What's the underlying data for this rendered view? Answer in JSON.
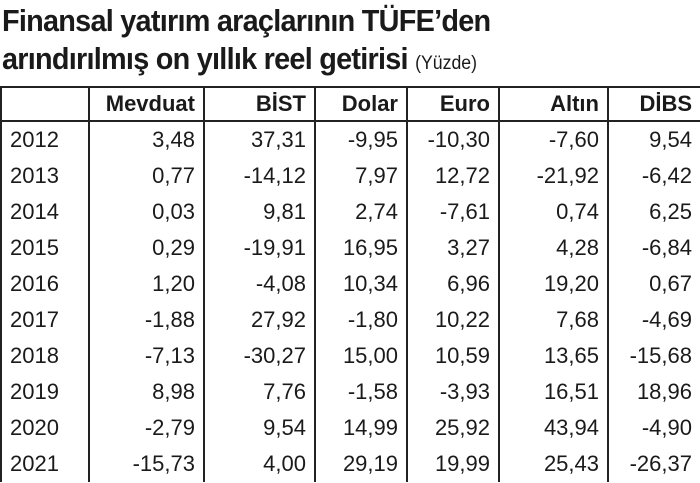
{
  "header": {
    "title": [
      "Finansal yatırım araçlarının TÜFE’den",
      "arındırılmış on yıllık reel getirisi"
    ],
    "unit": "(Yüzde)"
  },
  "table": {
    "columns": [
      "Mevduat",
      "BİST",
      "Dolar",
      "Euro",
      "Altın",
      "DİBS"
    ],
    "rows": [
      [
        "2012",
        "3,48",
        "37,31",
        "-9,95",
        "-10,30",
        "-7,60",
        "9,54"
      ],
      [
        "2013",
        "0,77",
        "-14,12",
        "7,97",
        "12,72",
        "-21,92",
        "-6,42"
      ],
      [
        "2014",
        "0,03",
        "9,81",
        "2,74",
        "-7,61",
        "0,74",
        "6,25"
      ],
      [
        "2015",
        "0,29",
        "-19,91",
        "16,95",
        "3,27",
        "4,28",
        "-6,84"
      ],
      [
        "2016",
        "1,20",
        "-4,08",
        "10,34",
        "6,96",
        "19,20",
        "0,67"
      ],
      [
        "2017",
        "-1,88",
        "27,92",
        "-1,80",
        "10,22",
        "7,68",
        "-4,69"
      ],
      [
        "2018",
        "-7,13",
        "-30,27",
        "15,00",
        "10,59",
        "13,65",
        "-15,68"
      ],
      [
        "2019",
        "8,98",
        "7,76",
        "-1,58",
        "-3,93",
        "16,51",
        "18,96"
      ],
      [
        "2020",
        "-2,79",
        "9,54",
        "14,99",
        "25,92",
        "43,94",
        "-4,90"
      ],
      [
        "2021",
        "-15,73",
        "4,00",
        "29,19",
        "19,99",
        "25,43",
        "-26,37"
      ]
    ]
  }
}
